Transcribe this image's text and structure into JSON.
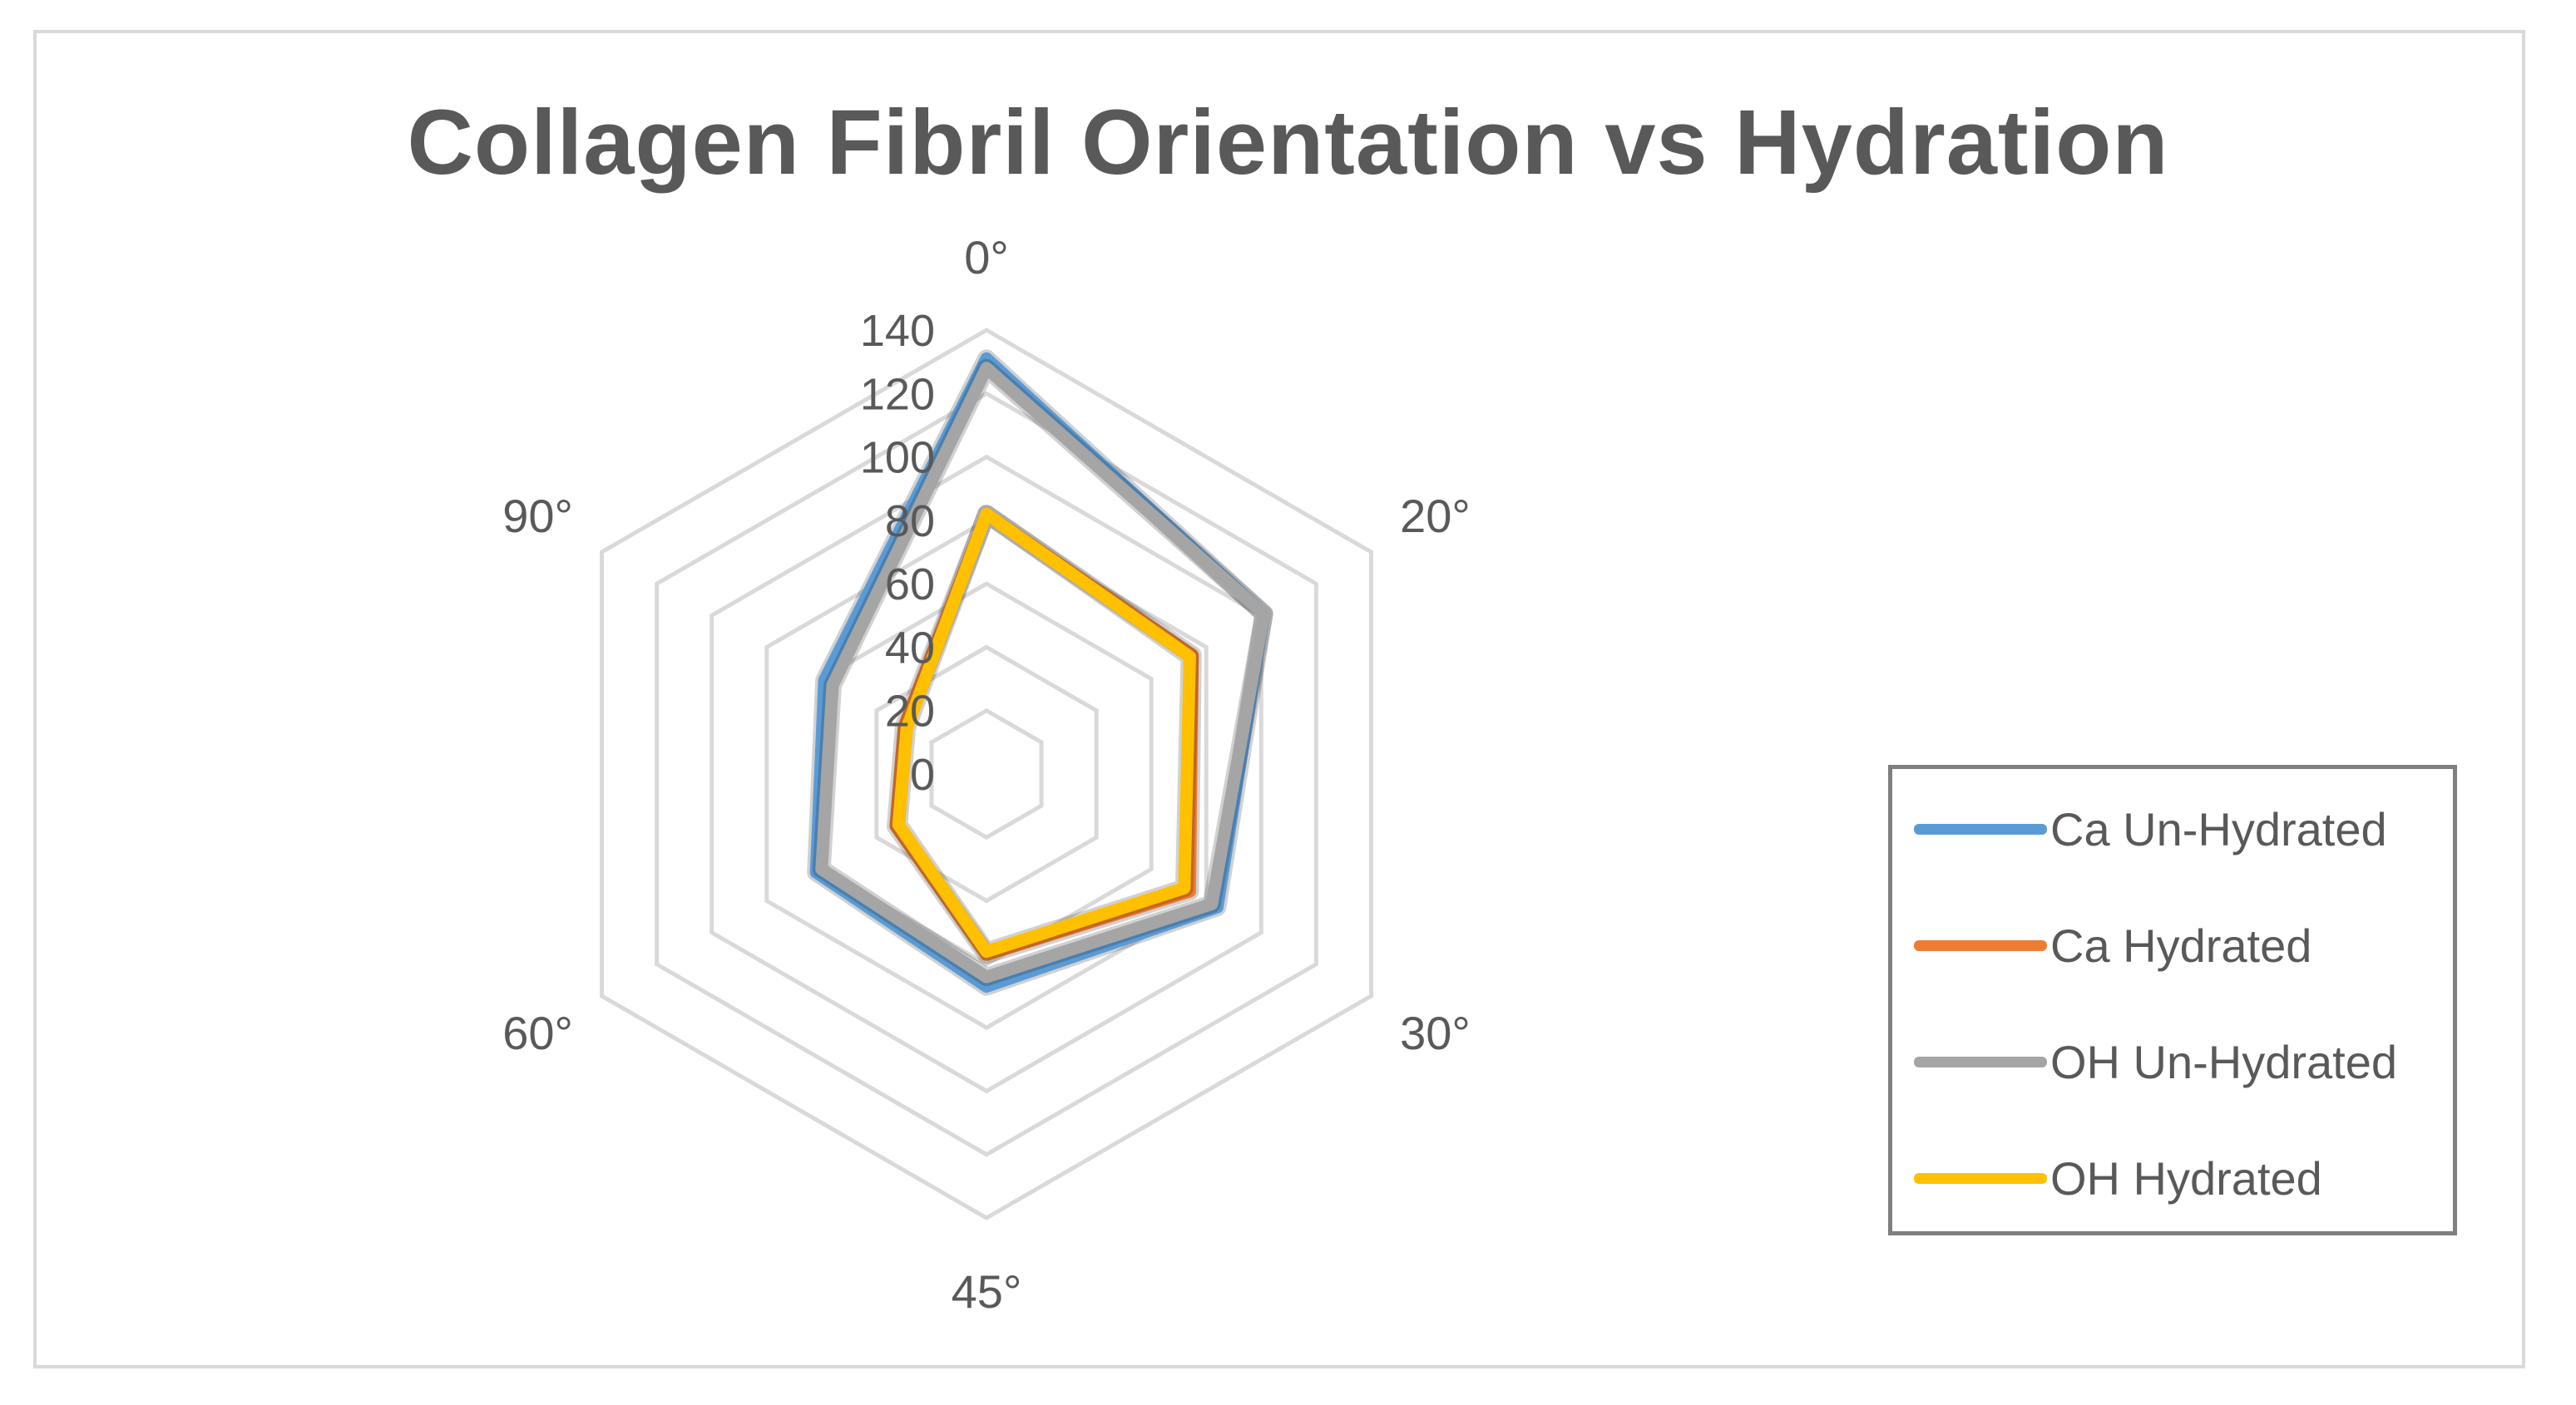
{
  "chart_data": {
    "type": "radar",
    "title": "Collagen Fibril Orientation vs Hydration",
    "categories": [
      "0°",
      "20°",
      "30°",
      "45°",
      "60°",
      "90°"
    ],
    "rlim": [
      0,
      140
    ],
    "ticks": [
      0,
      20,
      40,
      60,
      80,
      100,
      120,
      140
    ],
    "tick_labels": [
      "0",
      "20",
      "40",
      "60",
      "80",
      "100",
      "120",
      "140"
    ],
    "grid": true,
    "legend_position": "right",
    "series": [
      {
        "name": "Ca Un-Hydrated",
        "color": "#5b9bd5",
        "values": [
          131,
          101,
          84,
          67,
          62,
          59
        ]
      },
      {
        "name": "Ca Hydrated",
        "color": "#ed7d31",
        "values": [
          82,
          75,
          74,
          57,
          33,
          30
        ]
      },
      {
        "name": "OH Un-Hydrated",
        "color": "#a5a5a5",
        "values": [
          128,
          101,
          82,
          64,
          60,
          56
        ]
      },
      {
        "name": "OH Hydrated",
        "color": "#ffc000",
        "values": [
          82,
          74,
          72,
          56,
          32,
          29
        ]
      }
    ]
  }
}
